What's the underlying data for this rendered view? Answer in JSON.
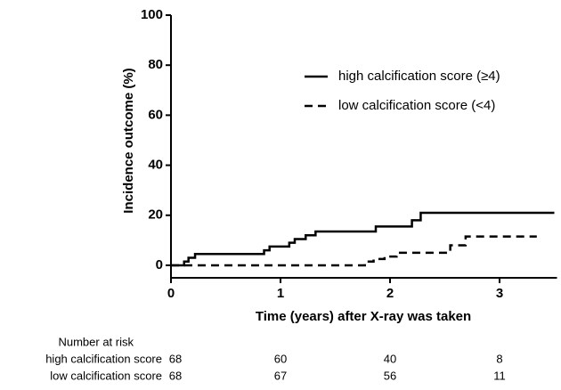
{
  "chart_data": {
    "type": "step",
    "xlabel": "Time (years) after X-ray was taken",
    "ylabel": "Incidence outcome (%)",
    "xlim": [
      0,
      3.5
    ],
    "ylim": [
      -5,
      100
    ],
    "xticks": [
      0,
      1,
      2,
      3
    ],
    "yticks": [
      0,
      20,
      40,
      60,
      80,
      100
    ],
    "legend": "upper right",
    "series": [
      {
        "name": "high calcification score (≥4)",
        "color": "#000000",
        "dash": "solid",
        "x": [
          0,
          0.12,
          0.16,
          0.22,
          0.85,
          0.9,
          1.08,
          1.13,
          1.23,
          1.32,
          1.87,
          2.2,
          2.28,
          3.5
        ],
        "values": [
          0,
          1.5,
          3,
          4.5,
          6,
          7.5,
          9,
          10.5,
          12,
          13.5,
          15.5,
          18,
          21,
          21
        ]
      },
      {
        "name": "low calcification score (<4)",
        "color": "#000000",
        "dash": "dashed",
        "x": [
          0,
          1.77,
          1.85,
          1.95,
          2.06,
          2.55,
          2.69,
          3.34
        ],
        "values": [
          0,
          1.5,
          2.5,
          3.5,
          5,
          8,
          11.5,
          11.5
        ]
      }
    ],
    "risk_table": {
      "title": "Number at risk",
      "times": [
        0,
        1,
        2,
        3
      ],
      "rows": [
        {
          "name": "high calcification score",
          "values": [
            68,
            60,
            40,
            8
          ]
        },
        {
          "name": "low calcification score",
          "values": [
            68,
            67,
            56,
            11
          ]
        }
      ]
    }
  }
}
